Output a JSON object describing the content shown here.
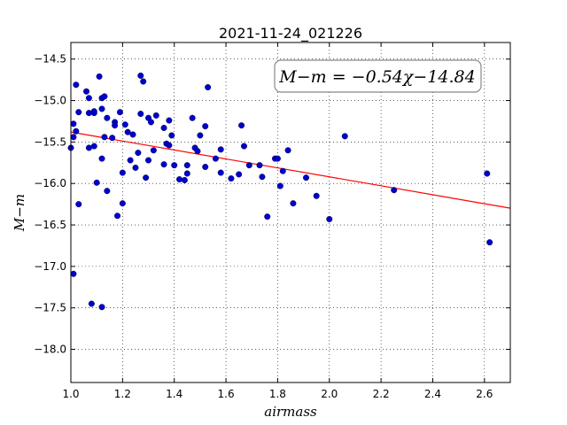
{
  "chart_data": {
    "type": "scatter",
    "title": "2021-11-24_021226",
    "xlabel": "airmass",
    "ylabel": "M−m",
    "xlim": [
      1.0,
      2.7
    ],
    "ylim": [
      -18.4,
      -14.3
    ],
    "y_inverted": true,
    "grid": true,
    "grid_style": "dotted",
    "x_ticks": [
      1.0,
      1.2,
      1.4,
      1.6,
      1.8,
      2.0,
      2.2,
      2.4,
      2.6
    ],
    "x_tick_labels": [
      "1.0",
      "1.2",
      "1.4",
      "1.6",
      "1.8",
      "2.0",
      "2.2",
      "2.4",
      "2.6"
    ],
    "y_ticks": [
      -14.5,
      -15.0,
      -15.5,
      -16.0,
      -16.5,
      -17.0,
      -17.5,
      -18.0
    ],
    "y_tick_labels": [
      "−14.5",
      "−15.0",
      "−15.5",
      "−16.0",
      "−16.5",
      "−17.0",
      "−17.5",
      "−18.0"
    ],
    "annotation": "M−m = −0.54χ−14.84",
    "annotation_placement": "top-right",
    "fit": {
      "slope": -0.54,
      "intercept": -14.84,
      "color": "#ff0000"
    },
    "marker_color": "#0000cc",
    "points": [
      [
        1.0,
        -15.57
      ],
      [
        1.01,
        -15.44
      ],
      [
        1.01,
        -15.28
      ],
      [
        1.01,
        -17.09
      ],
      [
        1.02,
        -14.81
      ],
      [
        1.02,
        -15.37
      ],
      [
        1.03,
        -15.14
      ],
      [
        1.03,
        -16.25
      ],
      [
        1.06,
        -14.89
      ],
      [
        1.07,
        -15.57
      ],
      [
        1.07,
        -15.15
      ],
      [
        1.07,
        -14.97
      ],
      [
        1.08,
        -17.45
      ],
      [
        1.09,
        -15.55
      ],
      [
        1.09,
        -15.15
      ],
      [
        1.09,
        -15.13
      ],
      [
        1.1,
        -15.99
      ],
      [
        1.11,
        -14.71
      ],
      [
        1.12,
        -15.1
      ],
      [
        1.12,
        -14.97
      ],
      [
        1.12,
        -15.7
      ],
      [
        1.12,
        -17.49
      ],
      [
        1.13,
        -14.95
      ],
      [
        1.13,
        -15.44
      ],
      [
        1.14,
        -16.09
      ],
      [
        1.14,
        -15.21
      ],
      [
        1.16,
        -15.45
      ],
      [
        1.17,
        -15.26
      ],
      [
        1.17,
        -15.3
      ],
      [
        1.18,
        -16.39
      ],
      [
        1.19,
        -15.14
      ],
      [
        1.2,
        -15.87
      ],
      [
        1.2,
        -16.24
      ],
      [
        1.21,
        -15.29
      ],
      [
        1.22,
        -15.38
      ],
      [
        1.23,
        -15.72
      ],
      [
        1.24,
        -15.41
      ],
      [
        1.25,
        -15.81
      ],
      [
        1.26,
        -15.63
      ],
      [
        1.27,
        -15.16
      ],
      [
        1.27,
        -14.7
      ],
      [
        1.28,
        -14.77
      ],
      [
        1.29,
        -15.93
      ],
      [
        1.3,
        -15.72
      ],
      [
        1.3,
        -15.21
      ],
      [
        1.31,
        -15.26
      ],
      [
        1.32,
        -15.6
      ],
      [
        1.33,
        -15.18
      ],
      [
        1.36,
        -15.77
      ],
      [
        1.36,
        -15.33
      ],
      [
        1.37,
        -15.52
      ],
      [
        1.38,
        -15.24
      ],
      [
        1.38,
        -15.54
      ],
      [
        1.39,
        -15.42
      ],
      [
        1.4,
        -15.78
      ],
      [
        1.42,
        -15.95
      ],
      [
        1.44,
        -15.96
      ],
      [
        1.45,
        -15.78
      ],
      [
        1.45,
        -15.88
      ],
      [
        1.47,
        -15.21
      ],
      [
        1.48,
        -15.57
      ],
      [
        1.49,
        -15.61
      ],
      [
        1.5,
        -15.42
      ],
      [
        1.52,
        -15.31
      ],
      [
        1.52,
        -15.8
      ],
      [
        1.53,
        -14.84
      ],
      [
        1.56,
        -15.7
      ],
      [
        1.58,
        -15.87
      ],
      [
        1.58,
        -15.59
      ],
      [
        1.62,
        -15.94
      ],
      [
        1.65,
        -15.89
      ],
      [
        1.66,
        -15.3
      ],
      [
        1.67,
        -15.55
      ],
      [
        1.69,
        -15.78
      ],
      [
        1.73,
        -15.78
      ],
      [
        1.74,
        -15.92
      ],
      [
        1.76,
        -16.4
      ],
      [
        1.79,
        -15.7
      ],
      [
        1.8,
        -15.7
      ],
      [
        1.81,
        -16.03
      ],
      [
        1.82,
        -15.85
      ],
      [
        1.84,
        -15.6
      ],
      [
        1.86,
        -16.24
      ],
      [
        1.91,
        -15.93
      ],
      [
        1.95,
        -16.15
      ],
      [
        2.0,
        -16.43
      ],
      [
        2.06,
        -15.43
      ],
      [
        2.25,
        -16.08
      ],
      [
        2.61,
        -15.88
      ],
      [
        2.62,
        -16.71
      ]
    ]
  }
}
